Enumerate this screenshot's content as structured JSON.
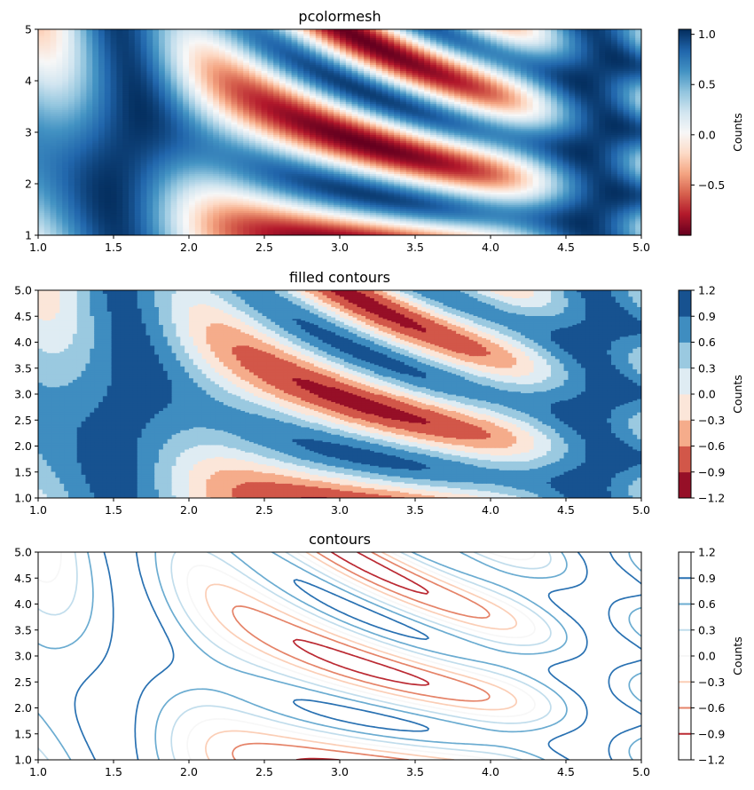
{
  "colormap": {
    "name": "RdBu",
    "stops": [
      "#67001f",
      "#b2182b",
      "#d6604d",
      "#f4a582",
      "#fddbc7",
      "#f7f7f7",
      "#d1e5f0",
      "#92c5de",
      "#4393c3",
      "#2166ac",
      "#053061"
    ]
  },
  "chart_data": [
    {
      "type": "heatmap",
      "title": "pcolormesh",
      "function": "z = sin(x)^10 + cos(10 + y*x)*cos(x), rescaled to [-1, 1]",
      "x_range": [
        1,
        5
      ],
      "y_range": [
        1,
        5
      ],
      "xticks": [
        "1.0",
        "1.5",
        "2.0",
        "2.5",
        "3.0",
        "3.5",
        "4.0",
        "4.5",
        "5.0"
      ],
      "yticks": [
        "1",
        "2",
        "3",
        "4",
        "5"
      ],
      "grid_cells": 100,
      "colorbar": {
        "label": "Counts",
        "range": [
          -1,
          1.05
        ],
        "ticks": [
          "1.0",
          "0.5",
          "0.0",
          "−0.5"
        ],
        "tick_values": [
          1.0,
          0.5,
          0.0,
          -0.5
        ]
      }
    },
    {
      "type": "heatmap",
      "title": "filled contours",
      "x_range": [
        1,
        5
      ],
      "y_range": [
        1,
        5
      ],
      "xticks": [
        "1.0",
        "1.5",
        "2.0",
        "2.5",
        "3.0",
        "3.5",
        "4.0",
        "4.5",
        "5.0"
      ],
      "yticks": [
        "1.0",
        "1.5",
        "2.0",
        "2.5",
        "3.0",
        "3.5",
        "4.0",
        "4.5",
        "5.0"
      ],
      "levels": [
        -1.2,
        -0.9,
        -0.6,
        -0.3,
        0.0,
        0.3,
        0.6,
        0.9,
        1.2
      ],
      "colorbar": {
        "label": "Counts",
        "range": [
          -1.2,
          1.2
        ],
        "ticks": [
          "1.2",
          "0.9",
          "0.6",
          "0.3",
          "0.0",
          "−0.3",
          "−0.6",
          "−0.9",
          "−1.2"
        ],
        "tick_values": [
          1.2,
          0.9,
          0.6,
          0.3,
          0.0,
          -0.3,
          -0.6,
          -0.9,
          -1.2
        ]
      }
    },
    {
      "type": "line",
      "title": "contours",
      "x_range": [
        1,
        5
      ],
      "y_range": [
        1,
        5
      ],
      "xticks": [
        "1.0",
        "1.5",
        "2.0",
        "2.5",
        "3.0",
        "3.5",
        "4.0",
        "4.5",
        "5.0"
      ],
      "yticks": [
        "1.0",
        "1.5",
        "2.0",
        "2.5",
        "3.0",
        "3.5",
        "4.0",
        "4.5",
        "5.0"
      ],
      "levels": [
        -0.9,
        -0.6,
        -0.3,
        0.0,
        0.3,
        0.6,
        0.9
      ],
      "colorbar": {
        "label": "Counts",
        "range": [
          -1.2,
          1.2
        ],
        "ticks": [
          "1.2",
          "0.9",
          "0.6",
          "0.3",
          "0.0",
          "−0.3",
          "−0.6",
          "−0.9",
          "−1.2"
        ],
        "tick_values": [
          1.2,
          0.9,
          0.6,
          0.3,
          0.0,
          -0.3,
          -0.6,
          -0.9,
          -1.2
        ]
      }
    }
  ]
}
